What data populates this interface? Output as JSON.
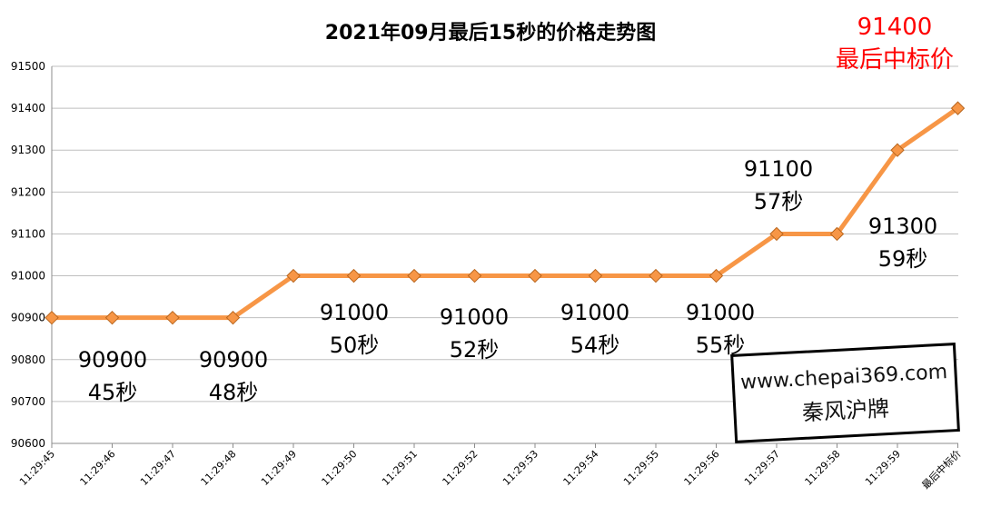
{
  "chart_data": {
    "type": "line",
    "title": "2021年09月最后15秒的价格走势图",
    "categories": [
      "11:29:45",
      "11:29:46",
      "11:29:47",
      "11:29:48",
      "11:29:49",
      "11:29:50",
      "11:29:51",
      "11:29:52",
      "11:29:53",
      "11:29:54",
      "11:29:55",
      "11:29:56",
      "11:29:57",
      "11:29:58",
      "11:29:59",
      "最后中标价"
    ],
    "values": [
      90900,
      90900,
      90900,
      90900,
      91000,
      91000,
      91000,
      91000,
      91000,
      91000,
      91000,
      91000,
      91100,
      91100,
      91300,
      91400
    ],
    "ylim": [
      90600,
      91500
    ],
    "yticks": [
      90600,
      90700,
      90800,
      90900,
      91000,
      91100,
      91200,
      91300,
      91400,
      91500
    ],
    "grid": true,
    "line_color": "#F79646",
    "marker_color": "#F79646",
    "annotations": [
      {
        "price": "90900",
        "time": "45秒",
        "index": 1
      },
      {
        "price": "90900",
        "time": "48秒",
        "index": 3
      },
      {
        "price": "91000",
        "time": "50秒",
        "index": 5
      },
      {
        "price": "91000",
        "time": "52秒",
        "index": 7
      },
      {
        "price": "91000",
        "time": "54秒",
        "index": 9
      },
      {
        "price": "91000",
        "time": "55秒",
        "index": 11
      },
      {
        "price": "91100",
        "time": "57秒",
        "index": 12
      },
      {
        "price": "91300",
        "time": "59秒",
        "index": 14
      }
    ],
    "final_annotation": {
      "price": "91400",
      "label": "最后中标价",
      "color": "#FF0000"
    }
  },
  "watermark": {
    "url": "www.chepai369.com",
    "name": "秦风沪牌"
  }
}
